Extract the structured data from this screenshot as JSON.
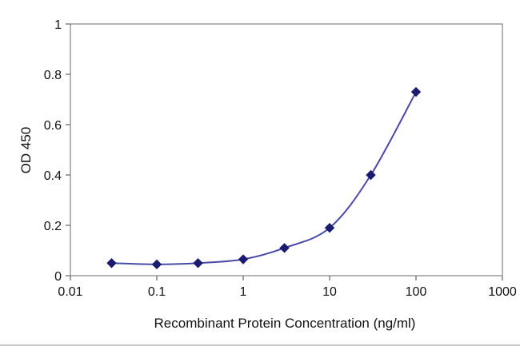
{
  "chart_data": {
    "type": "line",
    "title": "",
    "xlabel": "Recombinant Protein Concentration (ng/ml)",
    "ylabel": "OD 450",
    "x_scale": "log",
    "y_scale": "linear",
    "xlim": [
      0.01,
      1000
    ],
    "ylim": [
      0,
      1
    ],
    "x_ticks": [
      0.01,
      0.1,
      1,
      10,
      100,
      1000
    ],
    "x_tick_labels": [
      "0.01",
      "0.1",
      "1",
      "10",
      "100",
      "1000"
    ],
    "y_ticks": [
      0,
      0.2,
      0.4,
      0.6,
      0.8,
      1
    ],
    "y_tick_labels": [
      "0",
      "0.2",
      "0.4",
      "0.6",
      "0.8",
      "1"
    ],
    "grid": false,
    "legend": "none",
    "series": [
      {
        "name": "OD 450",
        "marker": "diamond",
        "x": [
          0.03,
          0.1,
          0.3,
          1,
          3,
          10,
          30,
          100
        ],
        "y": [
          0.05,
          0.045,
          0.05,
          0.065,
          0.11,
          0.19,
          0.4,
          0.73
        ]
      }
    ],
    "colors": {
      "line": "#4a4aa8",
      "marker": "#1b1b6f",
      "frame": "#8c8c8c",
      "tick": "#6e6e6e",
      "text": "#111111",
      "background": "#ffffff"
    }
  }
}
